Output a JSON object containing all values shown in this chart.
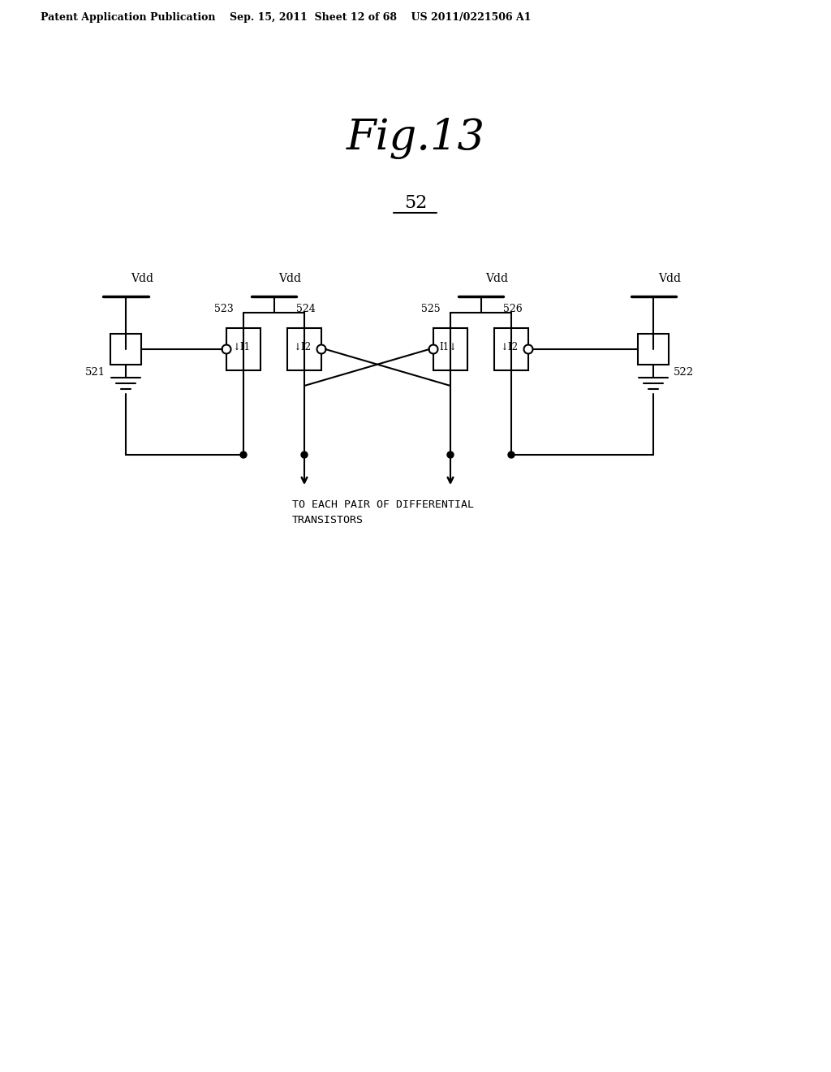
{
  "title": "Fig.13",
  "patent_header": "Patent Application Publication    Sep. 15, 2011  Sheet 12 of 68    US 2011/0221506 A1",
  "fig_label": "52",
  "background_color": "#ffffff",
  "line_color": "#000000",
  "component_labels": [
    "523",
    "524",
    "525",
    "526"
  ],
  "node_labels": [
    "521",
    "522"
  ],
  "vdd_labels": [
    "Vdd",
    "Vdd",
    "Vdd",
    "Vdd"
  ],
  "current_labels_left": [
    "↓I1",
    "↓I2"
  ],
  "current_labels_right": [
    "I1↓",
    "↓I2"
  ],
  "bottom_text_line1": "TO EACH PAIR OF DIFFERENTIAL",
  "bottom_text_line2": "TRANSISTORS"
}
